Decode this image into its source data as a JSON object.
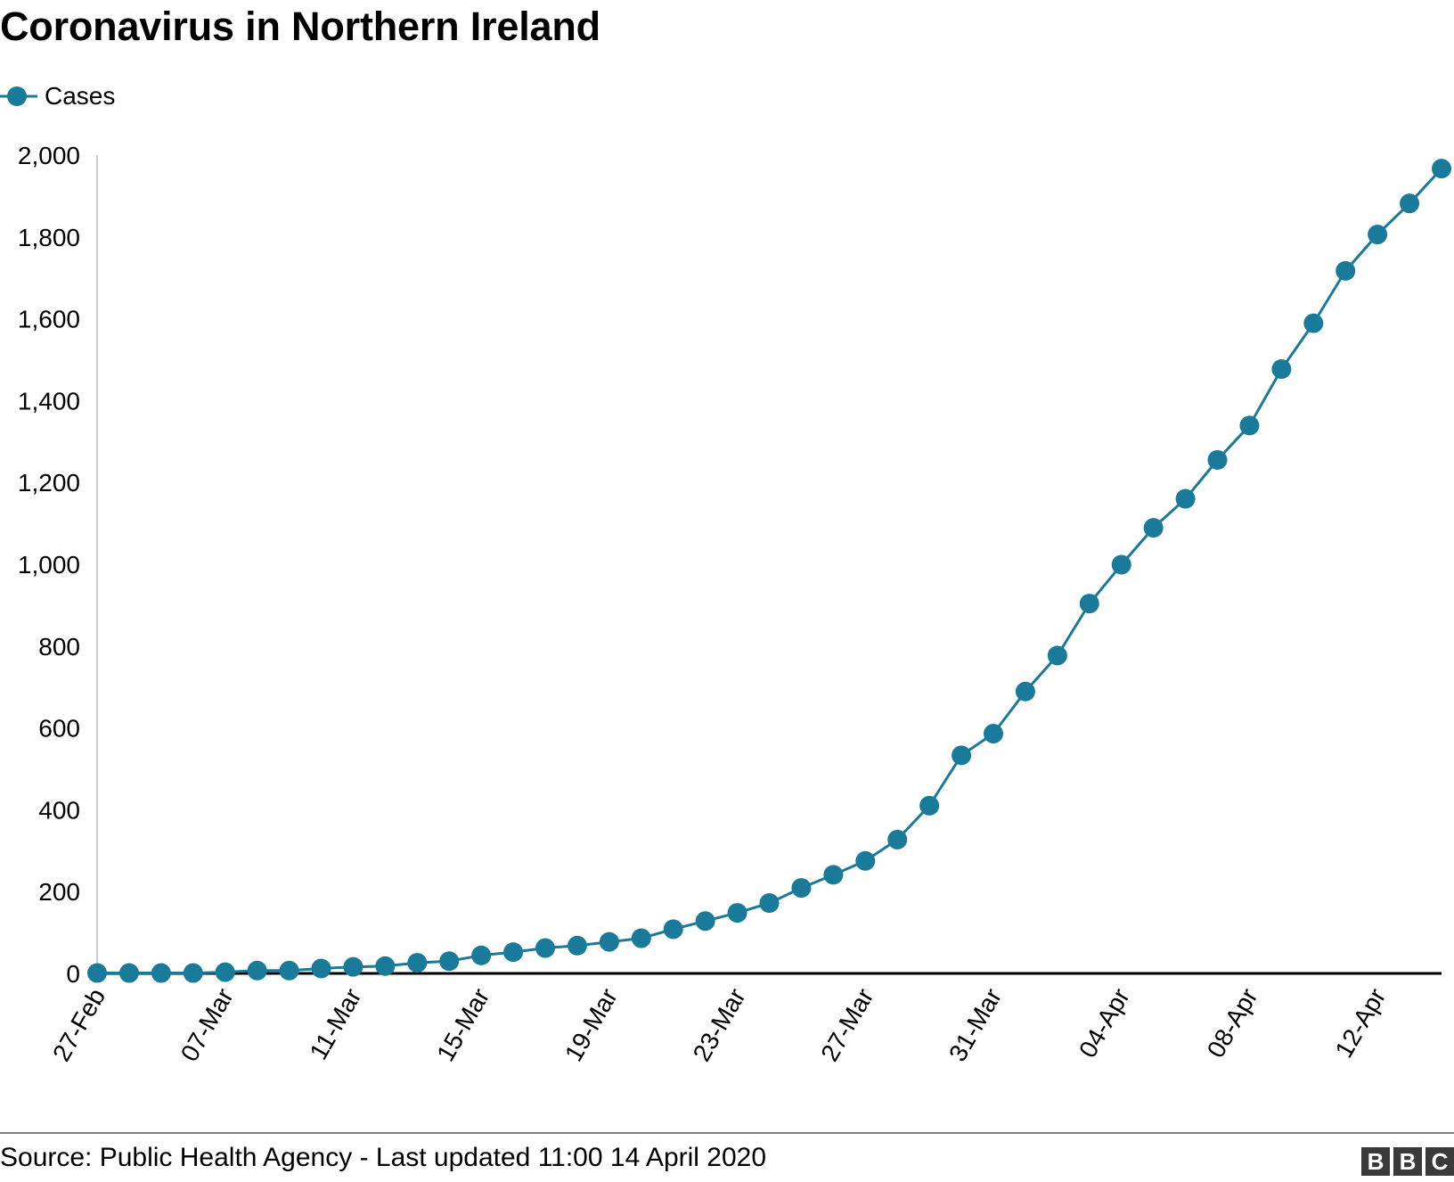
{
  "title": "Coronavirus in Northern Ireland",
  "legend": {
    "series_name": "Cases"
  },
  "footer": {
    "source": "Source: Public Health Agency - Last updated 11:00 14 April 2020",
    "logo_text": "BBC"
  },
  "colors": {
    "series": "#1a7a99",
    "axis": "#000000",
    "y_axis_line": "#cccccc",
    "rule": "#7f7f7f"
  },
  "chart_data": {
    "type": "line",
    "title": "Coronavirus in Northern Ireland",
    "xlabel": "",
    "ylabel": "",
    "ylim": [
      0,
      2000
    ],
    "yticks": [
      0,
      200,
      400,
      600,
      800,
      1000,
      1200,
      1400,
      1600,
      1800,
      2000
    ],
    "ytick_labels": [
      "0",
      "200",
      "400",
      "600",
      "800",
      "1,000",
      "1,200",
      "1,400",
      "1,600",
      "1,800",
      "2,000"
    ],
    "x_tick_labels": [
      "27-Feb",
      "07-Mar",
      "11-Mar",
      "15-Mar",
      "19-Mar",
      "23-Mar",
      "27-Mar",
      "31-Mar",
      "04-Apr",
      "08-Apr",
      "12-Apr"
    ],
    "x_tick_positions": [
      0,
      4,
      8,
      12,
      16,
      20,
      24,
      28,
      32,
      36,
      40
    ],
    "legend_position": "top-left",
    "grid": false,
    "series": [
      {
        "name": "Cases",
        "values": [
          1,
          1,
          1,
          1,
          3,
          7,
          7,
          12,
          16,
          18,
          26,
          30,
          44,
          52,
          62,
          68,
          77,
          86,
          108,
          128,
          148,
          172,
          209,
          241,
          275,
          327,
          410,
          533,
          586,
          689,
          777,
          904,
          999,
          1089,
          1160,
          1255,
          1339,
          1477,
          1589,
          1717,
          1806,
          1882,
          1967
        ]
      }
    ]
  }
}
